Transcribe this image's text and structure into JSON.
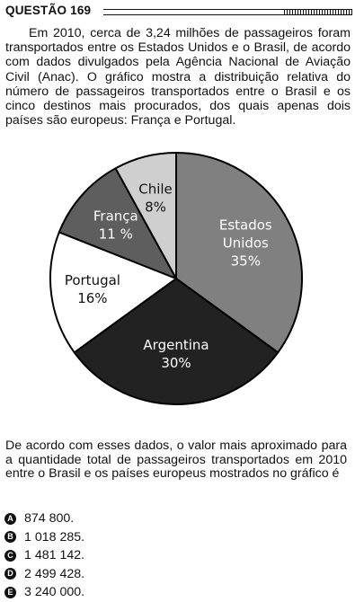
{
  "question": {
    "title": "QUESTÃO 169",
    "intro": "Em 2010, cerca de 3,24 milhões de passageiros foram transportados entre os Estados Unidos e o Brasil, de acordo com dados divulgados pela Agência Nacional de Aviação Civil (Anac). O gráfico mostra a distribuição relativa do número de passageiros transportados entre o Brasil e os cinco destinos mais procurados, dos quais apenas dois países são europeus: França e Portugal.",
    "stem": "De acordo com esses dados, o valor mais aproximado para a quantidade total de passageiros transportados em 2010 entre o Brasil e os países europeus mostrados no gráfico é",
    "options": [
      {
        "letter": "A",
        "text": "874 800."
      },
      {
        "letter": "B",
        "text": "1 018 285."
      },
      {
        "letter": "C",
        "text": "1 481 142."
      },
      {
        "letter": "D",
        "text": "2 499 428."
      },
      {
        "letter": "E",
        "text": "3 240 000."
      }
    ]
  },
  "chart_data": {
    "type": "pie",
    "unit": "%",
    "slices": [
      {
        "lines": [
          "Estados",
          "Unidos"
        ],
        "value": 35,
        "value_label": "35%",
        "color": "#808080",
        "text_color": "#ffffff"
      },
      {
        "lines": [
          "Argentina"
        ],
        "value": 30,
        "value_label": "30%",
        "color": "#222222",
        "text_color": "#ffffff"
      },
      {
        "lines": [
          "Portugal"
        ],
        "value": 16,
        "value_label": "16%",
        "color": "#ffffff",
        "text_color": "#111111"
      },
      {
        "lines": [
          "França"
        ],
        "value": 11,
        "value_label": "11 %",
        "color": "#5e5e5e",
        "text_color": "#ffffff"
      },
      {
        "lines": [
          "Chile"
        ],
        "value": 8,
        "value_label": "8%",
        "color": "#cfcfcf",
        "text_color": "#111111"
      }
    ]
  }
}
